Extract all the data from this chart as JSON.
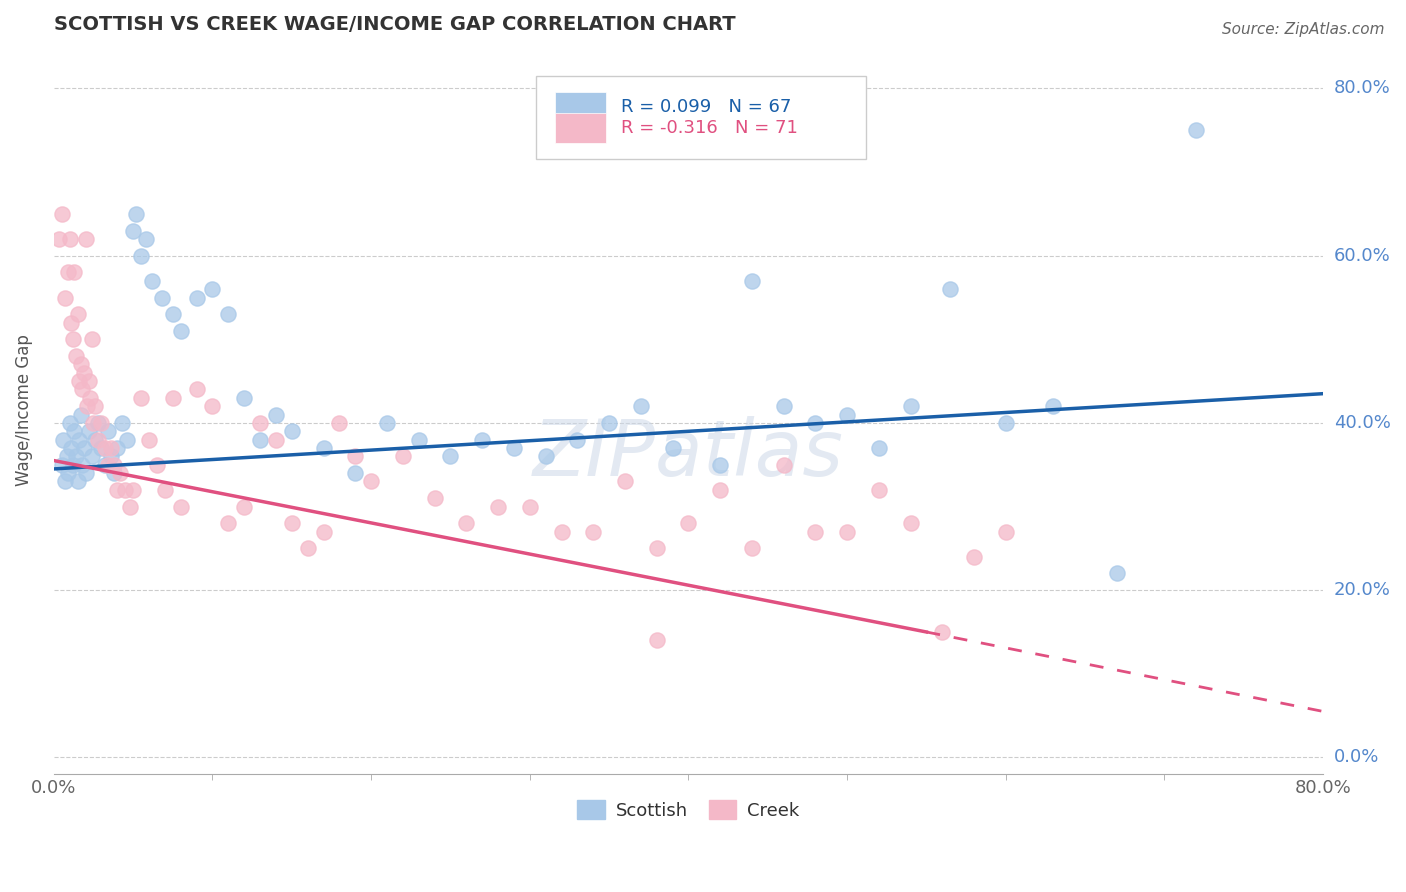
{
  "title": "SCOTTISH VS CREEK WAGE/INCOME GAP CORRELATION CHART",
  "source": "Source: ZipAtlas.com",
  "ylabel": "Wage/Income Gap",
  "scottish_R": 0.099,
  "scottish_N": 67,
  "creek_R": -0.316,
  "creek_N": 71,
  "scottish_color": "#a8c8e8",
  "creek_color": "#f4b8c8",
  "scottish_line_color": "#1a5fa8",
  "creek_line_color": "#e05080",
  "background_color": "#ffffff",
  "grid_color": "#cccccc",
  "scottish_points": [
    [
      0.5,
      35
    ],
    [
      0.6,
      38
    ],
    [
      0.7,
      33
    ],
    [
      0.8,
      36
    ],
    [
      0.9,
      34
    ],
    [
      1.0,
      40
    ],
    [
      1.1,
      37
    ],
    [
      1.2,
      35
    ],
    [
      1.3,
      39
    ],
    [
      1.4,
      36
    ],
    [
      1.5,
      33
    ],
    [
      1.6,
      38
    ],
    [
      1.7,
      41
    ],
    [
      1.8,
      35
    ],
    [
      1.9,
      37
    ],
    [
      2.0,
      34
    ],
    [
      2.2,
      39
    ],
    [
      2.4,
      36
    ],
    [
      2.6,
      38
    ],
    [
      2.8,
      40
    ],
    [
      3.0,
      37
    ],
    [
      3.2,
      35
    ],
    [
      3.4,
      39
    ],
    [
      3.6,
      36
    ],
    [
      3.8,
      34
    ],
    [
      4.0,
      37
    ],
    [
      4.3,
      40
    ],
    [
      4.6,
      38
    ],
    [
      5.0,
      63
    ],
    [
      5.2,
      65
    ],
    [
      5.5,
      60
    ],
    [
      5.8,
      62
    ],
    [
      6.2,
      57
    ],
    [
      6.8,
      55
    ],
    [
      7.5,
      53
    ],
    [
      8.0,
      51
    ],
    [
      9.0,
      55
    ],
    [
      10.0,
      56
    ],
    [
      11.0,
      53
    ],
    [
      12.0,
      43
    ],
    [
      13.0,
      38
    ],
    [
      14.0,
      41
    ],
    [
      15.0,
      39
    ],
    [
      17.0,
      37
    ],
    [
      19.0,
      34
    ],
    [
      21.0,
      40
    ],
    [
      23.0,
      38
    ],
    [
      25.0,
      36
    ],
    [
      27.0,
      38
    ],
    [
      29.0,
      37
    ],
    [
      31.0,
      36
    ],
    [
      33.0,
      38
    ],
    [
      35.0,
      40
    ],
    [
      37.0,
      42
    ],
    [
      39.0,
      37
    ],
    [
      42.0,
      35
    ],
    [
      44.0,
      57
    ],
    [
      46.0,
      42
    ],
    [
      48.0,
      40
    ],
    [
      50.0,
      41
    ],
    [
      52.0,
      37
    ],
    [
      54.0,
      42
    ],
    [
      56.5,
      56
    ],
    [
      60.0,
      40
    ],
    [
      63.0,
      42
    ],
    [
      67.0,
      22
    ],
    [
      72.0,
      75
    ]
  ],
  "creek_points": [
    [
      0.3,
      62
    ],
    [
      0.5,
      65
    ],
    [
      0.7,
      55
    ],
    [
      0.9,
      58
    ],
    [
      1.0,
      62
    ],
    [
      1.1,
      52
    ],
    [
      1.2,
      50
    ],
    [
      1.3,
      58
    ],
    [
      1.4,
      48
    ],
    [
      1.5,
      53
    ],
    [
      1.6,
      45
    ],
    [
      1.7,
      47
    ],
    [
      1.8,
      44
    ],
    [
      1.9,
      46
    ],
    [
      2.0,
      62
    ],
    [
      2.1,
      42
    ],
    [
      2.2,
      45
    ],
    [
      2.3,
      43
    ],
    [
      2.4,
      50
    ],
    [
      2.5,
      40
    ],
    [
      2.6,
      42
    ],
    [
      2.8,
      38
    ],
    [
      3.0,
      40
    ],
    [
      3.2,
      37
    ],
    [
      3.4,
      35
    ],
    [
      3.6,
      37
    ],
    [
      3.8,
      35
    ],
    [
      4.0,
      32
    ],
    [
      4.2,
      34
    ],
    [
      4.5,
      32
    ],
    [
      4.8,
      30
    ],
    [
      5.0,
      32
    ],
    [
      5.5,
      43
    ],
    [
      6.0,
      38
    ],
    [
      6.5,
      35
    ],
    [
      7.0,
      32
    ],
    [
      7.5,
      43
    ],
    [
      8.0,
      30
    ],
    [
      9.0,
      44
    ],
    [
      10.0,
      42
    ],
    [
      11.0,
      28
    ],
    [
      12.0,
      30
    ],
    [
      13.0,
      40
    ],
    [
      14.0,
      38
    ],
    [
      15.0,
      28
    ],
    [
      16.0,
      25
    ],
    [
      17.0,
      27
    ],
    [
      18.0,
      40
    ],
    [
      19.0,
      36
    ],
    [
      20.0,
      33
    ],
    [
      22.0,
      36
    ],
    [
      24.0,
      31
    ],
    [
      26.0,
      28
    ],
    [
      28.0,
      30
    ],
    [
      30.0,
      30
    ],
    [
      32.0,
      27
    ],
    [
      34.0,
      27
    ],
    [
      36.0,
      33
    ],
    [
      38.0,
      25
    ],
    [
      40.0,
      28
    ],
    [
      42.0,
      32
    ],
    [
      44.0,
      25
    ],
    [
      46.0,
      35
    ],
    [
      48.0,
      27
    ],
    [
      50.0,
      27
    ],
    [
      52.0,
      32
    ],
    [
      54.0,
      28
    ],
    [
      56.0,
      15
    ],
    [
      58.0,
      24
    ],
    [
      60.0,
      27
    ],
    [
      38.0,
      14
    ]
  ],
  "xlim": [
    0.0,
    80.0
  ],
  "ylim": [
    -2,
    85
  ],
  "yticks": [
    0,
    20,
    40,
    60,
    80
  ],
  "yticklabels": [
    "0.0%",
    "20.0%",
    "40.0%",
    "60.0%",
    "80.0%"
  ],
  "scottish_trendline": [
    0.0,
    80.0,
    34.5,
    43.5
  ],
  "creek_trendline_solid": [
    0.0,
    55.0,
    35.5,
    15.0
  ],
  "creek_trendline_dashed": [
    55.0,
    80.0,
    15.0,
    5.5
  ]
}
